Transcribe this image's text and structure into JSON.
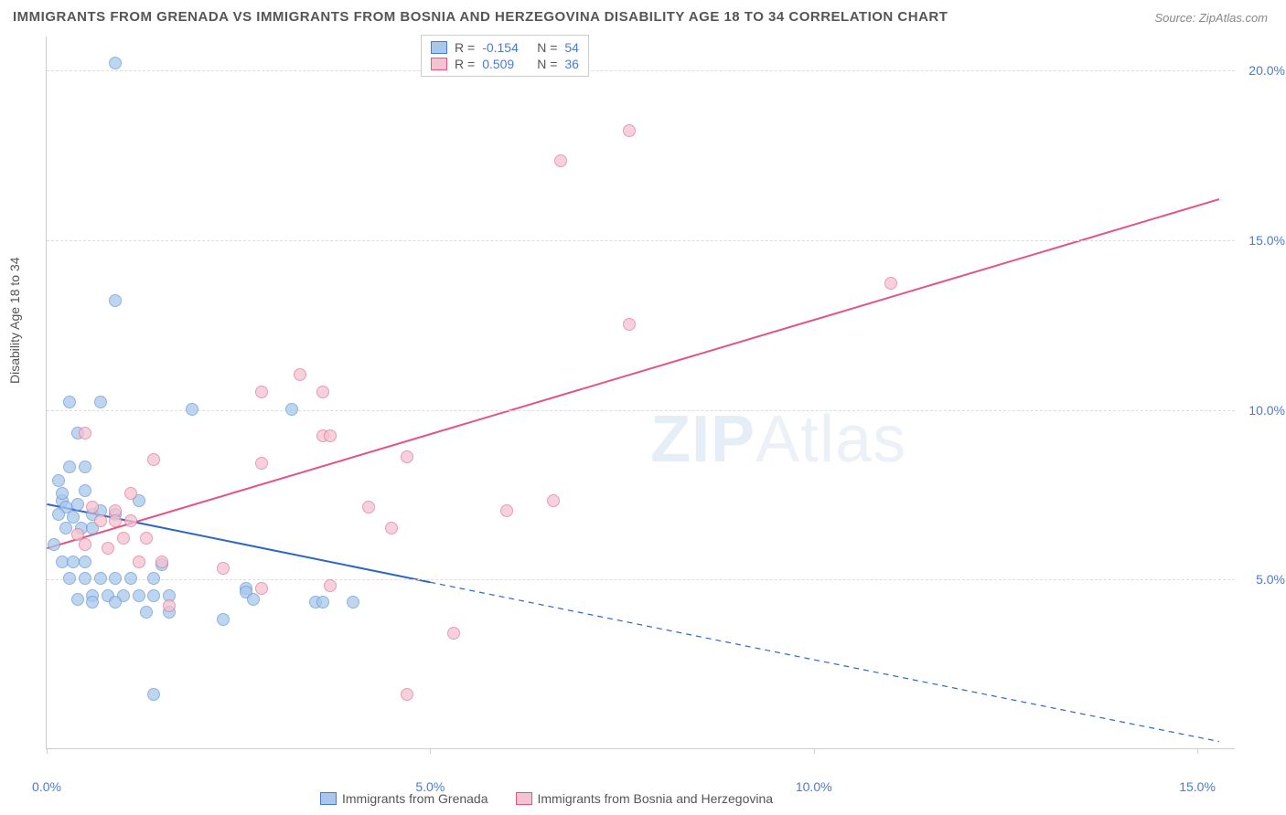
{
  "title": "IMMIGRANTS FROM GRENADA VS IMMIGRANTS FROM BOSNIA AND HERZEGOVINA DISABILITY AGE 18 TO 34 CORRELATION CHART",
  "source": "Source: ZipAtlas.com",
  "ylabel": "Disability Age 18 to 34",
  "watermark_bold": "ZIP",
  "watermark_thin": "Atlas",
  "legend_top": {
    "rows": [
      {
        "r_label": "R =",
        "r_value": "-0.154",
        "n_label": "N =",
        "n_value": "54",
        "swatch_fill": "#a9c7ec",
        "swatch_border": "#4a7bd0"
      },
      {
        "r_label": "R =",
        "r_value": "0.509",
        "n_label": "N =",
        "n_value": "36",
        "swatch_fill": "#f4c2d0",
        "swatch_border": "#e55383"
      }
    ],
    "r_label_color": "#555555",
    "n_label_color": "#555555",
    "value_color": "#4a7bd0"
  },
  "legend_bottom": {
    "items": [
      {
        "label": "Immigrants from Grenada",
        "swatch_fill": "#a9c7ec",
        "swatch_border": "#4a7bd0"
      },
      {
        "label": "Immigrants from Bosnia and Herzegovina",
        "swatch_fill": "#f4c2d0",
        "swatch_border": "#e55383"
      }
    ]
  },
  "chart": {
    "type": "scatter",
    "xlim": [
      0,
      15.5
    ],
    "ylim": [
      0,
      21
    ],
    "x_ticks": [
      0,
      5,
      10,
      15
    ],
    "x_tick_labels": [
      "0.0%",
      "5.0%",
      "10.0%",
      "15.0%"
    ],
    "y_gridlines": [
      5,
      10,
      15,
      20
    ],
    "y_tick_labels": [
      "5.0%",
      "10.0%",
      "15.0%",
      "20.0%"
    ],
    "grid_color": "#dddddd",
    "axis_color": "#cccccc",
    "background": "#ffffff",
    "point_radius": 7,
    "point_opacity": 0.75,
    "series": [
      {
        "name": "grenada",
        "fill": "#a9c7ec",
        "stroke": "#6a9ad8",
        "points": [
          [
            0.9,
            20.2
          ],
          [
            0.9,
            13.2
          ],
          [
            0.3,
            10.2
          ],
          [
            0.7,
            10.2
          ],
          [
            1.9,
            10.0
          ],
          [
            0.4,
            9.3
          ],
          [
            0.3,
            8.3
          ],
          [
            0.5,
            8.3
          ],
          [
            0.15,
            7.9
          ],
          [
            0.4,
            7.2
          ],
          [
            0.2,
            7.3
          ],
          [
            0.25,
            7.1
          ],
          [
            0.15,
            6.9
          ],
          [
            0.35,
            6.8
          ],
          [
            0.6,
            6.9
          ],
          [
            0.7,
            7.0
          ],
          [
            0.9,
            6.9
          ],
          [
            0.25,
            6.5
          ],
          [
            0.45,
            6.5
          ],
          [
            0.6,
            6.5
          ],
          [
            0.1,
            6.0
          ],
          [
            0.2,
            5.5
          ],
          [
            0.35,
            5.5
          ],
          [
            0.5,
            5.5
          ],
          [
            0.3,
            5.0
          ],
          [
            0.5,
            5.0
          ],
          [
            0.7,
            5.0
          ],
          [
            0.9,
            5.0
          ],
          [
            1.1,
            5.0
          ],
          [
            1.4,
            5.0
          ],
          [
            0.6,
            4.5
          ],
          [
            0.8,
            4.5
          ],
          [
            1.0,
            4.5
          ],
          [
            1.2,
            4.5
          ],
          [
            1.4,
            4.5
          ],
          [
            1.6,
            4.5
          ],
          [
            2.6,
            4.7
          ],
          [
            2.6,
            4.6
          ],
          [
            2.7,
            4.4
          ],
          [
            0.4,
            4.4
          ],
          [
            0.6,
            4.3
          ],
          [
            0.9,
            4.3
          ],
          [
            1.3,
            4.0
          ],
          [
            1.6,
            4.0
          ],
          [
            2.3,
            3.8
          ],
          [
            3.5,
            4.3
          ],
          [
            3.6,
            4.3
          ],
          [
            4.0,
            4.3
          ],
          [
            1.4,
            1.6
          ],
          [
            3.2,
            10.0
          ],
          [
            0.2,
            7.5
          ],
          [
            0.5,
            7.6
          ],
          [
            1.2,
            7.3
          ],
          [
            1.5,
            5.4
          ]
        ],
        "trend": {
          "x1": 0,
          "y1": 7.2,
          "x2_solid": 5.0,
          "y2_solid": 4.9,
          "x2_dash": 15.3,
          "y2_dash": 0.2,
          "color": "#2e66c7",
          "width": 2
        }
      },
      {
        "name": "bosnia",
        "fill": "#f4c2d0",
        "stroke": "#e27a9a",
        "points": [
          [
            7.6,
            18.2
          ],
          [
            6.7,
            17.3
          ],
          [
            11.0,
            13.7
          ],
          [
            7.6,
            12.5
          ],
          [
            3.3,
            11.0
          ],
          [
            2.8,
            10.5
          ],
          [
            3.6,
            10.5
          ],
          [
            3.6,
            9.2
          ],
          [
            3.7,
            9.2
          ],
          [
            4.7,
            8.6
          ],
          [
            2.8,
            8.4
          ],
          [
            1.1,
            7.5
          ],
          [
            1.4,
            8.5
          ],
          [
            0.6,
            7.1
          ],
          [
            0.9,
            7.0
          ],
          [
            0.7,
            6.7
          ],
          [
            0.9,
            6.7
          ],
          [
            1.1,
            6.7
          ],
          [
            4.2,
            7.1
          ],
          [
            4.5,
            6.5
          ],
          [
            6.0,
            7.0
          ],
          [
            6.6,
            7.3
          ],
          [
            1.2,
            5.5
          ],
          [
            1.5,
            5.5
          ],
          [
            2.3,
            5.3
          ],
          [
            2.8,
            4.7
          ],
          [
            3.7,
            4.8
          ],
          [
            1.6,
            4.2
          ],
          [
            5.3,
            3.4
          ],
          [
            4.7,
            1.6
          ],
          [
            0.4,
            6.3
          ],
          [
            0.5,
            6.0
          ],
          [
            0.8,
            5.9
          ],
          [
            1.0,
            6.2
          ],
          [
            1.3,
            6.2
          ],
          [
            0.5,
            9.3
          ]
        ],
        "trend": {
          "x1": 0,
          "y1": 5.9,
          "x2_solid": 15.3,
          "y2_solid": 16.2,
          "color": "#e55383",
          "width": 2
        }
      }
    ]
  }
}
